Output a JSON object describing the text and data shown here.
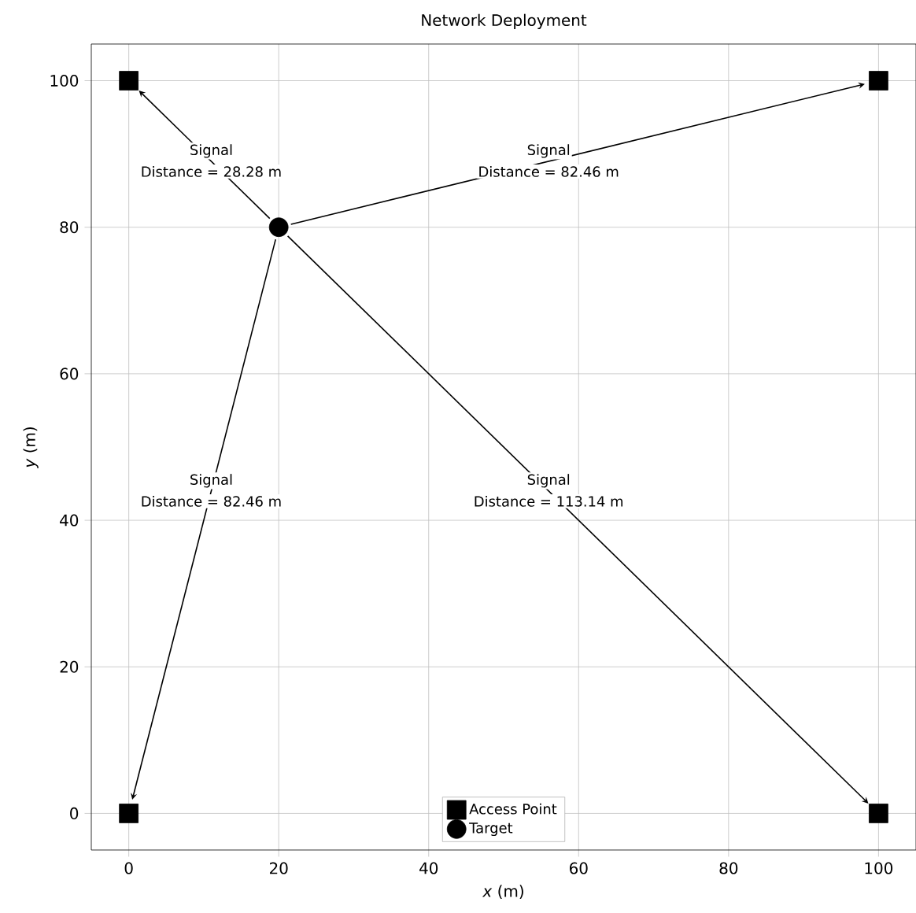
{
  "chart_data": {
    "type": "scatter",
    "title": "Network Deployment",
    "xlabel": "*x* (m)",
    "ylabel": "*y* (m)",
    "series": [
      {
        "name": "Access Point",
        "color": "#000000",
        "marker": "square",
        "x": [
          0,
          100,
          0,
          100
        ],
        "values": [
          100,
          100,
          0,
          0
        ]
      },
      {
        "name": "Target",
        "color": "#000000",
        "marker": "circle",
        "x": [
          20
        ],
        "values": [
          80
        ]
      }
    ],
    "annotations": [
      "Signal",
      "Distance = 28.28 m",
      "Signal",
      "Distance = 82.46 m",
      "Signal",
      "Distance = 82.46 m",
      "Signal",
      "Distance = 113.14 m"
    ],
    "xlim": [
      -5,
      105
    ],
    "ylim": [
      -5,
      105
    ],
    "xticks": [
      0,
      20,
      40,
      60,
      80,
      100
    ],
    "yticks": [
      0,
      20,
      40,
      60,
      80,
      100
    ],
    "grid": true,
    "legend": "bottom"
  }
}
